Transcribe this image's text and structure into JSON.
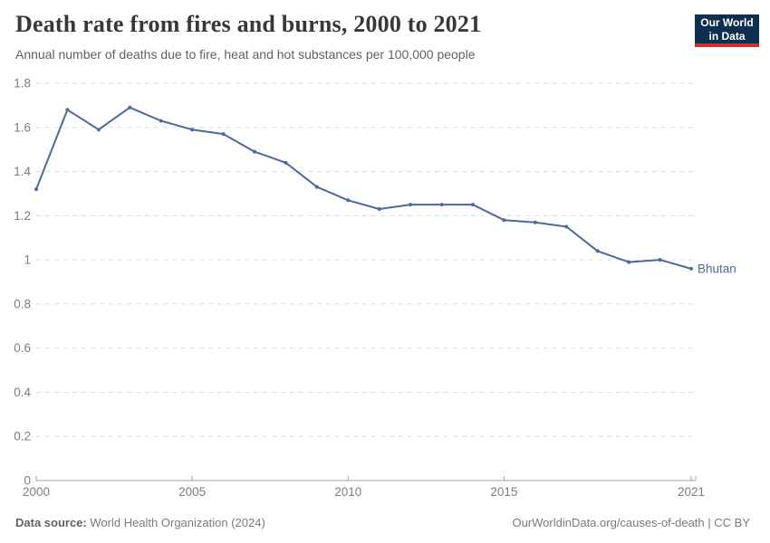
{
  "header": {
    "title": "Death rate from fires and burns, 2000 to 2021",
    "subtitle": "Annual number of deaths due to fire, heat and hot substances per 100,000 people",
    "logo": {
      "line1": "Our World",
      "line2": "in Data",
      "bg_color": "#102f50",
      "accent_color": "#cc3029"
    }
  },
  "chart_data": {
    "type": "line",
    "title": "Death rate from fires and burns, 2000 to 2021",
    "subtitle": "Annual number of deaths due to fire, heat and hot substances per 100,000 people",
    "x": [
      2000,
      2001,
      2002,
      2003,
      2004,
      2005,
      2006,
      2007,
      2008,
      2009,
      2010,
      2011,
      2012,
      2013,
      2014,
      2015,
      2016,
      2017,
      2018,
      2019,
      2020,
      2021
    ],
    "series": [
      {
        "name": "Bhutan",
        "color": "#4c6a9c",
        "values": [
          1.32,
          1.68,
          1.59,
          1.69,
          1.63,
          1.59,
          1.57,
          1.49,
          1.44,
          1.33,
          1.27,
          1.23,
          1.25,
          1.25,
          1.25,
          1.18,
          1.17,
          1.15,
          1.04,
          0.99,
          1.0,
          0.96
        ]
      }
    ],
    "xlabel": "",
    "ylabel": "",
    "xlim": [
      2000,
      2021
    ],
    "ylim": [
      0,
      1.8
    ],
    "xticks": [
      2000,
      2005,
      2010,
      2015,
      2021
    ],
    "xtick_labels": [
      "2000",
      "2005",
      "2010",
      "2015",
      "2021"
    ],
    "yticks": [
      0,
      0.2,
      0.4,
      0.6,
      0.8,
      1.0,
      1.2,
      1.4,
      1.6,
      1.8
    ],
    "ytick_labels": [
      "0",
      "0.2",
      "0.4",
      "0.6",
      "0.8",
      "1",
      "1.2",
      "1.4",
      "1.6",
      "1.8"
    ],
    "grid": "horizontal-dashed",
    "legend_position": "end-of-line-label",
    "end_label": "Bhutan",
    "colors": {
      "gridline": "#dedede",
      "axis_line": "#a3a3a3",
      "tick_text": "#7d7d7d"
    }
  },
  "footer": {
    "datasource_label": "Data source:",
    "datasource_value": "World Health Organization (2024)",
    "url": "OurWorldinData.org/causes-of-death",
    "separator": " | ",
    "license": "CC BY"
  }
}
